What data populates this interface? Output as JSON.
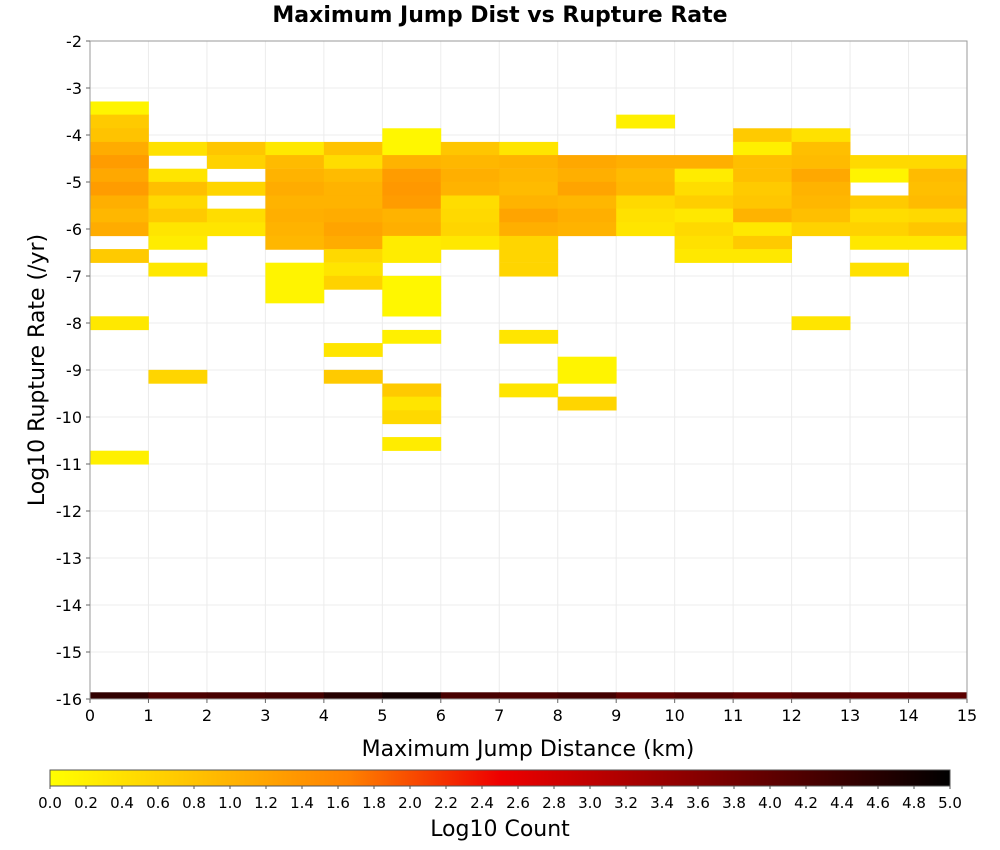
{
  "chart_data": {
    "type": "heatmap",
    "title": "Maximum Jump Dist vs Rupture Rate",
    "xlabel": "Maximum Jump Distance (km)",
    "ylabel": "Log10 Rupture Rate (/yr)",
    "xlim": [
      0,
      15
    ],
    "ylim": [
      -16,
      -2
    ],
    "x_ticks": [
      "0",
      "1",
      "2",
      "3",
      "4",
      "5",
      "6",
      "7",
      "8",
      "9",
      "10",
      "11",
      "12",
      "13",
      "14",
      "15"
    ],
    "y_ticks": [
      "-2",
      "-3",
      "-4",
      "-5",
      "-6",
      "-7",
      "-8",
      "-9",
      "-10",
      "-11",
      "-12",
      "-13",
      "-14",
      "-15",
      "-16"
    ],
    "grid": true,
    "bin_width_x": 1,
    "bin_height_y": 0.286,
    "colorbar": {
      "label": "Log10 Count",
      "min": 0.0,
      "max": 5.0,
      "ticks": [
        "0.0",
        "0.2",
        "0.4",
        "0.6",
        "0.8",
        "1.0",
        "1.2",
        "1.4",
        "1.6",
        "1.8",
        "2.0",
        "2.2",
        "2.4",
        "2.6",
        "2.8",
        "3.0",
        "3.2",
        "3.4",
        "3.6",
        "3.8",
        "4.0",
        "4.2",
        "4.4",
        "4.6",
        "4.8",
        "5.0"
      ],
      "colormap": [
        "#ffff00",
        "#ffc000",
        "#ff8000",
        "#ee0000",
        "#a00000",
        "#500000",
        "#000000"
      ]
    },
    "cells": [
      {
        "x": 0,
        "y": -3.43,
        "v": 0.15
      },
      {
        "x": 0,
        "y": -3.71,
        "v": 0.7
      },
      {
        "x": 0,
        "y": -4.0,
        "v": 0.8
      },
      {
        "x": 0,
        "y": -4.29,
        "v": 1.1
      },
      {
        "x": 0,
        "y": -4.57,
        "v": 1.3
      },
      {
        "x": 0,
        "y": -4.86,
        "v": 1.15
      },
      {
        "x": 0,
        "y": -5.14,
        "v": 1.3
      },
      {
        "x": 0,
        "y": -5.43,
        "v": 1.05
      },
      {
        "x": 0,
        "y": -5.71,
        "v": 0.95
      },
      {
        "x": 0,
        "y": -6.0,
        "v": 1.1
      },
      {
        "x": 0,
        "y": -6.57,
        "v": 0.7
      },
      {
        "x": 0,
        "y": -8.0,
        "v": 0.3
      },
      {
        "x": 0,
        "y": -10.86,
        "v": 0.2
      },
      {
        "x": 1,
        "y": -4.29,
        "v": 0.4
      },
      {
        "x": 1,
        "y": -4.86,
        "v": 0.35
      },
      {
        "x": 1,
        "y": -5.14,
        "v": 0.85
      },
      {
        "x": 1,
        "y": -5.43,
        "v": 0.5
      },
      {
        "x": 1,
        "y": -5.71,
        "v": 0.7
      },
      {
        "x": 1,
        "y": -6.0,
        "v": 0.35
      },
      {
        "x": 1,
        "y": -6.29,
        "v": 0.25
      },
      {
        "x": 1,
        "y": -6.86,
        "v": 0.3
      },
      {
        "x": 1,
        "y": -9.14,
        "v": 0.55
      },
      {
        "x": 2,
        "y": -4.29,
        "v": 0.75
      },
      {
        "x": 2,
        "y": -4.57,
        "v": 0.6
      },
      {
        "x": 2,
        "y": -5.14,
        "v": 0.55
      },
      {
        "x": 2,
        "y": -5.71,
        "v": 0.45
      },
      {
        "x": 2,
        "y": -6.0,
        "v": 0.35
      },
      {
        "x": 3,
        "y": -4.29,
        "v": 0.3
      },
      {
        "x": 3,
        "y": -4.57,
        "v": 0.9
      },
      {
        "x": 3,
        "y": -4.86,
        "v": 1.0
      },
      {
        "x": 3,
        "y": -5.14,
        "v": 1.1
      },
      {
        "x": 3,
        "y": -5.43,
        "v": 1.0
      },
      {
        "x": 3,
        "y": -5.71,
        "v": 1.05
      },
      {
        "x": 3,
        "y": -6.0,
        "v": 1.0
      },
      {
        "x": 3,
        "y": -6.29,
        "v": 0.95
      },
      {
        "x": 3,
        "y": -6.86,
        "v": 0.15
      },
      {
        "x": 3,
        "y": -7.14,
        "v": 0.15
      },
      {
        "x": 3,
        "y": -7.43,
        "v": 0.15
      },
      {
        "x": 4,
        "y": -4.29,
        "v": 0.8
      },
      {
        "x": 4,
        "y": -4.57,
        "v": 0.45
      },
      {
        "x": 4,
        "y": -4.86,
        "v": 0.9
      },
      {
        "x": 4,
        "y": -5.14,
        "v": 1.0
      },
      {
        "x": 4,
        "y": -5.43,
        "v": 1.0
      },
      {
        "x": 4,
        "y": -5.71,
        "v": 1.1
      },
      {
        "x": 4,
        "y": -6.0,
        "v": 1.2
      },
      {
        "x": 4,
        "y": -6.29,
        "v": 1.1
      },
      {
        "x": 4,
        "y": -6.57,
        "v": 0.5
      },
      {
        "x": 4,
        "y": -6.86,
        "v": 0.35
      },
      {
        "x": 4,
        "y": -7.14,
        "v": 0.6
      },
      {
        "x": 4,
        "y": -8.57,
        "v": 0.35
      },
      {
        "x": 4,
        "y": -9.14,
        "v": 0.7
      },
      {
        "x": 5,
        "y": -4.0,
        "v": 0.1
      },
      {
        "x": 5,
        "y": -4.29,
        "v": 0.1
      },
      {
        "x": 5,
        "y": -4.57,
        "v": 1.0
      },
      {
        "x": 5,
        "y": -4.86,
        "v": 1.3
      },
      {
        "x": 5,
        "y": -5.14,
        "v": 1.35
      },
      {
        "x": 5,
        "y": -5.43,
        "v": 1.3
      },
      {
        "x": 5,
        "y": -5.71,
        "v": 1.0
      },
      {
        "x": 5,
        "y": -6.0,
        "v": 1.05
      },
      {
        "x": 5,
        "y": -6.29,
        "v": 0.25
      },
      {
        "x": 5,
        "y": -6.57,
        "v": 0.25
      },
      {
        "x": 5,
        "y": -7.14,
        "v": 0.1
      },
      {
        "x": 5,
        "y": -7.43,
        "v": 0.1
      },
      {
        "x": 5,
        "y": -7.71,
        "v": 0.1
      },
      {
        "x": 5,
        "y": -8.29,
        "v": 0.2
      },
      {
        "x": 5,
        "y": -9.43,
        "v": 0.7
      },
      {
        "x": 5,
        "y": -9.71,
        "v": 0.35
      },
      {
        "x": 5,
        "y": -10.0,
        "v": 0.5
      },
      {
        "x": 5,
        "y": -10.57,
        "v": 0.25
      },
      {
        "x": 6,
        "y": -4.29,
        "v": 0.75
      },
      {
        "x": 6,
        "y": -4.57,
        "v": 0.95
      },
      {
        "x": 6,
        "y": -4.86,
        "v": 1.05
      },
      {
        "x": 6,
        "y": -5.14,
        "v": 1.0
      },
      {
        "x": 6,
        "y": -5.43,
        "v": 0.45
      },
      {
        "x": 6,
        "y": -5.71,
        "v": 0.5
      },
      {
        "x": 6,
        "y": -6.0,
        "v": 0.55
      },
      {
        "x": 6,
        "y": -6.29,
        "v": 0.3
      },
      {
        "x": 7,
        "y": -4.29,
        "v": 0.35
      },
      {
        "x": 7,
        "y": -4.57,
        "v": 1.0
      },
      {
        "x": 7,
        "y": -4.86,
        "v": 0.95
      },
      {
        "x": 7,
        "y": -5.14,
        "v": 0.9
      },
      {
        "x": 7,
        "y": -5.43,
        "v": 1.0
      },
      {
        "x": 7,
        "y": -5.71,
        "v": 1.2
      },
      {
        "x": 7,
        "y": -6.0,
        "v": 1.05
      },
      {
        "x": 7,
        "y": -6.29,
        "v": 0.55
      },
      {
        "x": 7,
        "y": -6.57,
        "v": 0.55
      },
      {
        "x": 7,
        "y": -6.86,
        "v": 0.55
      },
      {
        "x": 7,
        "y": -8.29,
        "v": 0.35
      },
      {
        "x": 7,
        "y": -9.43,
        "v": 0.35
      },
      {
        "x": 8,
        "y": -4.57,
        "v": 1.15
      },
      {
        "x": 8,
        "y": -4.86,
        "v": 1.05
      },
      {
        "x": 8,
        "y": -5.14,
        "v": 1.2
      },
      {
        "x": 8,
        "y": -5.43,
        "v": 0.95
      },
      {
        "x": 8,
        "y": -5.71,
        "v": 1.05
      },
      {
        "x": 8,
        "y": -6.0,
        "v": 1.0
      },
      {
        "x": 8,
        "y": -8.86,
        "v": 0.15
      },
      {
        "x": 8,
        "y": -9.14,
        "v": 0.15
      },
      {
        "x": 8,
        "y": -9.71,
        "v": 0.55
      },
      {
        "x": 9,
        "y": -3.71,
        "v": 0.2
      },
      {
        "x": 9,
        "y": -4.57,
        "v": 1.05
      },
      {
        "x": 9,
        "y": -4.86,
        "v": 0.9
      },
      {
        "x": 9,
        "y": -5.14,
        "v": 0.95
      },
      {
        "x": 9,
        "y": -5.43,
        "v": 0.5
      },
      {
        "x": 9,
        "y": -5.71,
        "v": 0.4
      },
      {
        "x": 9,
        "y": -6.0,
        "v": 0.35
      },
      {
        "x": 10,
        "y": -4.57,
        "v": 1.05
      },
      {
        "x": 10,
        "y": -4.86,
        "v": 0.25
      },
      {
        "x": 10,
        "y": -5.14,
        "v": 0.45
      },
      {
        "x": 10,
        "y": -5.43,
        "v": 0.65
      },
      {
        "x": 10,
        "y": -5.71,
        "v": 0.3
      },
      {
        "x": 10,
        "y": -6.0,
        "v": 0.5
      },
      {
        "x": 10,
        "y": -6.29,
        "v": 0.4
      },
      {
        "x": 10,
        "y": -6.57,
        "v": 0.3
      },
      {
        "x": 11,
        "y": -4.0,
        "v": 0.7
      },
      {
        "x": 11,
        "y": -4.29,
        "v": 0.2
      },
      {
        "x": 11,
        "y": -4.57,
        "v": 0.85
      },
      {
        "x": 11,
        "y": -4.86,
        "v": 0.85
      },
      {
        "x": 11,
        "y": -5.14,
        "v": 0.7
      },
      {
        "x": 11,
        "y": -5.43,
        "v": 0.75
      },
      {
        "x": 11,
        "y": -5.71,
        "v": 1.0
      },
      {
        "x": 11,
        "y": -6.0,
        "v": 0.3
      },
      {
        "x": 11,
        "y": -6.29,
        "v": 0.7
      },
      {
        "x": 11,
        "y": -6.57,
        "v": 0.3
      },
      {
        "x": 12,
        "y": -4.0,
        "v": 0.4
      },
      {
        "x": 12,
        "y": -4.29,
        "v": 0.85
      },
      {
        "x": 12,
        "y": -4.57,
        "v": 0.9
      },
      {
        "x": 12,
        "y": -4.86,
        "v": 1.15
      },
      {
        "x": 12,
        "y": -5.14,
        "v": 1.0
      },
      {
        "x": 12,
        "y": -5.43,
        "v": 0.95
      },
      {
        "x": 12,
        "y": -5.71,
        "v": 0.85
      },
      {
        "x": 12,
        "y": -6.0,
        "v": 0.6
      },
      {
        "x": 12,
        "y": -8.0,
        "v": 0.35
      },
      {
        "x": 13,
        "y": -4.57,
        "v": 0.5
      },
      {
        "x": 13,
        "y": -4.86,
        "v": 0.15
      },
      {
        "x": 13,
        "y": -5.43,
        "v": 0.7
      },
      {
        "x": 13,
        "y": -5.71,
        "v": 0.45
      },
      {
        "x": 13,
        "y": -6.0,
        "v": 0.6
      },
      {
        "x": 13,
        "y": -6.29,
        "v": 0.3
      },
      {
        "x": 13,
        "y": -6.86,
        "v": 0.4
      },
      {
        "x": 14,
        "y": -4.57,
        "v": 0.5
      },
      {
        "x": 14,
        "y": -4.86,
        "v": 0.9
      },
      {
        "x": 14,
        "y": -5.14,
        "v": 0.85
      },
      {
        "x": 14,
        "y": -5.43,
        "v": 0.9
      },
      {
        "x": 14,
        "y": -5.71,
        "v": 0.5
      },
      {
        "x": 14,
        "y": -6.0,
        "v": 0.75
      },
      {
        "x": 14,
        "y": -6.29,
        "v": 0.3
      },
      {
        "x": 0,
        "y": -16.0,
        "v": 4.5
      },
      {
        "x": 1,
        "y": -16.0,
        "v": 4.2
      },
      {
        "x": 2,
        "y": -16.0,
        "v": 4.25
      },
      {
        "x": 3,
        "y": -16.0,
        "v": 4.3
      },
      {
        "x": 4,
        "y": -16.0,
        "v": 4.6
      },
      {
        "x": 5,
        "y": -16.0,
        "v": 4.8
      },
      {
        "x": 6,
        "y": -16.0,
        "v": 4.25
      },
      {
        "x": 7,
        "y": -16.0,
        "v": 4.2
      },
      {
        "x": 8,
        "y": -16.0,
        "v": 4.3
      },
      {
        "x": 9,
        "y": -16.0,
        "v": 4.0
      },
      {
        "x": 10,
        "y": -16.0,
        "v": 4.1
      },
      {
        "x": 11,
        "y": -16.0,
        "v": 4.0
      },
      {
        "x": 12,
        "y": -16.0,
        "v": 4.1
      },
      {
        "x": 13,
        "y": -16.0,
        "v": 4.0
      },
      {
        "x": 14,
        "y": -16.0,
        "v": 4.05
      }
    ]
  }
}
